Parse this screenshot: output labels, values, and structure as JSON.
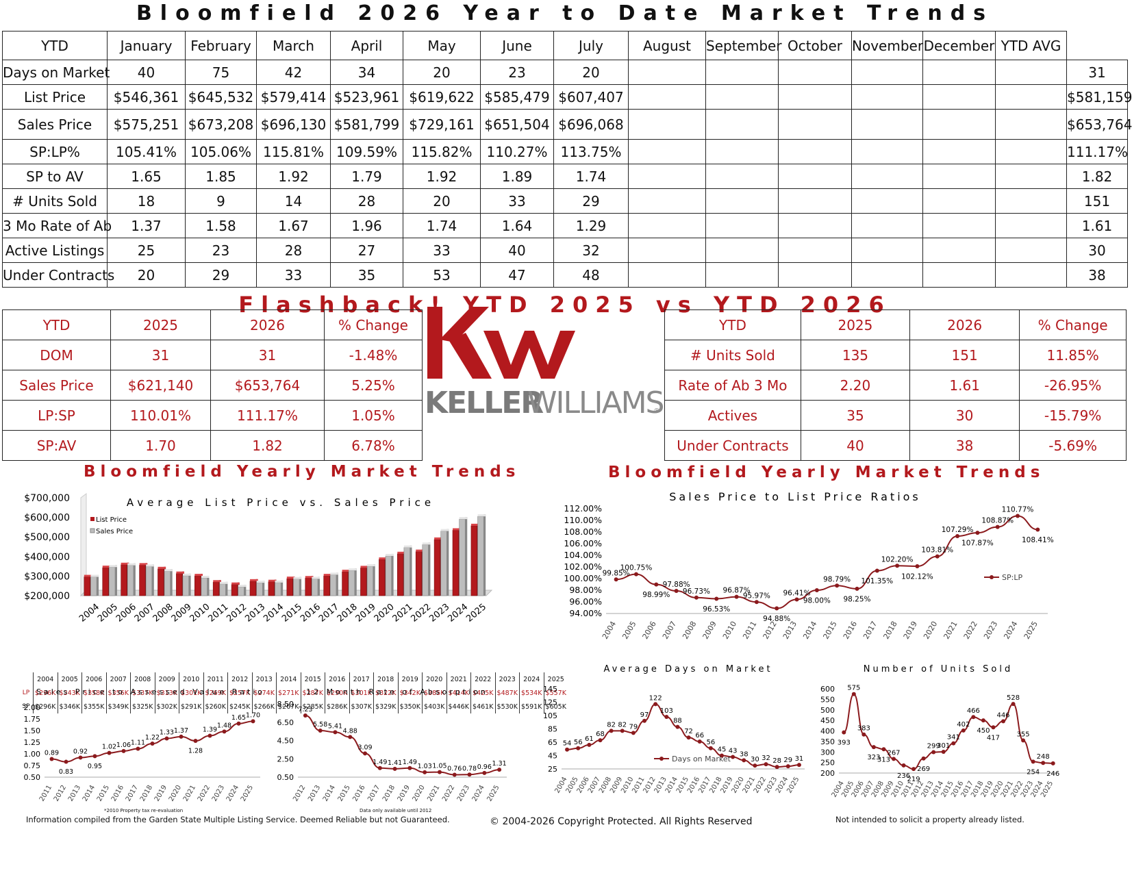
{
  "page_title": "Bloomfield 2026 Year to Date Market Trends",
  "main_table": {
    "headers": [
      "YTD",
      "January",
      "February",
      "March",
      "April",
      "May",
      "June",
      "July",
      "August",
      "September",
      "October",
      "November",
      "December",
      "YTD AVG"
    ],
    "rows": [
      {
        "label": "Days on Market",
        "values": [
          "40",
          "75",
          "42",
          "34",
          "20",
          "23",
          "20",
          "",
          "",
          "",
          "",
          "",
          ""
        ],
        "avg": "31"
      },
      {
        "label": "List Price",
        "values": [
          "$546,361",
          "$645,532",
          "$579,414",
          "$523,961",
          "$619,622",
          "$585,479",
          "$607,407",
          "",
          "",
          "",
          "",
          "",
          ""
        ],
        "avg": "$581,159"
      },
      {
        "label": "Sales Price",
        "values": [
          "$575,251",
          "$673,208",
          "$696,130",
          "$581,799",
          "$729,161",
          "$651,504",
          "$696,068",
          "",
          "",
          "",
          "",
          "",
          ""
        ],
        "avg": "$653,764"
      },
      {
        "label": "SP:LP%",
        "values": [
          "105.41%",
          "105.06%",
          "115.81%",
          "109.59%",
          "115.82%",
          "110.27%",
          "113.75%",
          "",
          "",
          "",
          "",
          "",
          ""
        ],
        "avg": "111.17%"
      },
      {
        "label": "SP to AV",
        "values": [
          "1.65",
          "1.85",
          "1.92",
          "1.79",
          "1.92",
          "1.89",
          "1.74",
          "",
          "",
          "",
          "",
          "",
          ""
        ],
        "avg": "1.82"
      },
      {
        "label": "# Units Sold",
        "values": [
          "18",
          "9",
          "14",
          "28",
          "20",
          "33",
          "29",
          "",
          "",
          "",
          "",
          "",
          ""
        ],
        "avg": "151"
      },
      {
        "label": "3 Mo Rate of Ab",
        "values": [
          "1.37",
          "1.58",
          "1.67",
          "1.96",
          "1.74",
          "1.64",
          "1.29",
          "",
          "",
          "",
          "",
          "",
          ""
        ],
        "avg": "1.61"
      },
      {
        "label": "Active Listings",
        "values": [
          "25",
          "23",
          "28",
          "27",
          "33",
          "40",
          "32",
          "",
          "",
          "",
          "",
          "",
          ""
        ],
        "avg": "30"
      },
      {
        "label": "Under Contracts",
        "values": [
          "20",
          "29",
          "33",
          "35",
          "53",
          "47",
          "48",
          "",
          "",
          "",
          "",
          "",
          ""
        ],
        "avg": "38"
      }
    ]
  },
  "flashback_title": "Flashback!  YTD 2025 vs YTD 2026",
  "left_compare": {
    "headers": [
      "YTD",
      "2025",
      "2026",
      "% Change"
    ],
    "rows": [
      [
        "DOM",
        "31",
        "31",
        "-1.48%"
      ],
      [
        "Sales Price",
        "$621,140",
        "$653,764",
        "5.25%"
      ],
      [
        "LP:SP",
        "110.01%",
        "111.17%",
        "1.05%"
      ],
      [
        "SP:AV",
        "1.70",
        "1.82",
        "6.78%"
      ]
    ]
  },
  "right_compare": {
    "headers": [
      "YTD",
      "2025",
      "2026",
      "% Change"
    ],
    "rows": [
      [
        "# Units Sold",
        "135",
        "151",
        "11.85%"
      ],
      [
        "Rate of Ab 3 Mo",
        "2.20",
        "1.61",
        "-26.95%"
      ],
      [
        "Actives",
        "35",
        "30",
        "-15.79%"
      ],
      [
        "Under Contracts",
        "40",
        "38",
        "-5.69%"
      ]
    ]
  },
  "logo": {
    "mark": "KW",
    "wordmark_bold": "KELLER",
    "wordmark_light": "WILLIAMS",
    "reg": "®"
  },
  "section_titles": {
    "left": "Bloomfield Yearly Market Trends",
    "right": "Bloomfield Yearly Market Trends"
  },
  "colors": {
    "brand_red": "#b3191d",
    "gray_bar": "#bdbdbd"
  },
  "chart_data": [
    {
      "type": "bar",
      "title": "Average List Price vs. Sales Price",
      "categories": [
        "2004",
        "2005",
        "2006",
        "2007",
        "2008",
        "2009",
        "2010",
        "2011",
        "2012",
        "2013",
        "2014",
        "2015",
        "2016",
        "2017",
        "2018",
        "2019",
        "2020",
        "2021",
        "2022",
        "2023",
        "2024",
        "2025"
      ],
      "series": [
        {
          "name": "List Price",
          "values": [
            296000,
            343000,
            358000,
            356000,
            337000,
            313000,
            301000,
            269000,
            257000,
            274000,
            271000,
            287000,
            290000,
            301000,
            322000,
            342000,
            385000,
            414000,
            425000,
            487000,
            534000,
            557000
          ]
        },
        {
          "name": "Sales Price",
          "values": [
            296000,
            346000,
            355000,
            349000,
            325000,
            302000,
            291000,
            260000,
            245000,
            266000,
            267000,
            285000,
            286000,
            307000,
            329000,
            350000,
            403000,
            446000,
            461000,
            530000,
            591000,
            605000
          ]
        }
      ],
      "yticks": [
        "$200,000",
        "$300,000",
        "$400,000",
        "$500,000",
        "$600,000",
        "$700,000"
      ],
      "ylim": [
        200000,
        700000
      ],
      "legend": "top-left",
      "table": {
        "years": [
          "2004",
          "2005",
          "2006",
          "2007",
          "2008",
          "2009",
          "2010",
          "2011",
          "2012",
          "2013",
          "2014",
          "2015",
          "2016",
          "2017",
          "2018",
          "2019",
          "2020",
          "2021",
          "2022",
          "2023",
          "2024",
          "2025"
        ],
        "lp_label": "LP",
        "sp_label": "SP",
        "lp": [
          "$296K",
          "$343K",
          "$358K",
          "$356K",
          "$337K",
          "$313K",
          "$301K",
          "$269K",
          "$257K",
          "$274K",
          "$271K",
          "$287K",
          "$290K",
          "$301K",
          "$322K",
          "$342K",
          "$385K",
          "$414K",
          "$425K",
          "$487K",
          "$534K",
          "$557K"
        ],
        "sp": [
          "$296K",
          "$346K",
          "$355K",
          "$349K",
          "$325K",
          "$302K",
          "$291K",
          "$260K",
          "$245K",
          "$266K",
          "$267K",
          "$285K",
          "$286K",
          "$307K",
          "$329K",
          "$350K",
          "$403K",
          "$446K",
          "$461K",
          "$530K",
          "$591K",
          "$605K"
        ]
      }
    },
    {
      "type": "line",
      "title": "Sales Price to List Price Ratios",
      "categories": [
        "2004",
        "2005",
        "2006",
        "2007",
        "2008",
        "2009",
        "2010",
        "2011",
        "2012",
        "2013",
        "2014",
        "2015",
        "2016",
        "2017",
        "2018",
        "2019",
        "2020",
        "2021",
        "2022",
        "2023",
        "2024",
        "2025"
      ],
      "series": [
        {
          "name": "SP:LP",
          "values": [
            99.85,
            100.75,
            98.99,
            97.88,
            96.73,
            96.53,
            96.87,
            95.97,
            94.88,
            96.41,
            98.0,
            98.79,
            98.25,
            101.35,
            102.2,
            102.12,
            103.81,
            107.29,
            107.87,
            108.87,
            110.77,
            108.41
          ]
        }
      ],
      "labels": [
        "99.85%",
        "100.75%",
        "98.99%",
        "97.88%",
        "96.73%",
        "96.53%",
        "96.87%",
        "95.97%",
        "94.88%",
        "96.41%",
        "98.00%",
        "98.79%",
        "98.25%",
        "101.35%",
        "102.20%",
        "102.12%",
        "103.81%",
        "107.29%",
        "107.87%",
        "108.87%",
        "110.77%",
        "108.41%"
      ],
      "yticks": [
        "94.00%",
        "96.00%",
        "98.00%",
        "100.00%",
        "102.00%",
        "104.00%",
        "106.00%",
        "108.00%",
        "110.00%",
        "112.00%"
      ],
      "ylim": [
        94,
        112
      ],
      "legend": "right"
    },
    {
      "type": "line",
      "title": "Sales Price to Assessed Value Ratio",
      "categories": [
        "2011",
        "2012",
        "2013",
        "2014",
        "2015",
        "2016",
        "2017",
        "2018",
        "2019",
        "2020",
        "2021",
        "2022",
        "2023",
        "2024",
        "2025"
      ],
      "series": [
        {
          "values": [
            0.89,
            0.83,
            0.92,
            0.95,
            1.02,
            1.06,
            1.11,
            1.22,
            1.33,
            1.37,
            1.28,
            1.39,
            1.48,
            1.65,
            1.7
          ]
        }
      ],
      "labels": [
        "0.89",
        "0.83",
        "0.92",
        "0.95",
        "1.02",
        "1.06",
        "1.11",
        "1.22",
        "1.33",
        "1.37",
        "1.28",
        "1.39",
        "1.48",
        "1.65",
        "1.70"
      ],
      "yticks": [
        "0.50",
        "0.75",
        "1.00",
        "1.25",
        "1.50",
        "1.75",
        "2.00"
      ],
      "ylim": [
        0.5,
        2.0
      ],
      "note": "*2010 Property tax re-evaluation"
    },
    {
      "type": "line",
      "title": "12 Month Rate of Absorption",
      "categories": [
        "2012",
        "2013",
        "2014",
        "2015",
        "2016",
        "2017",
        "2018",
        "2019",
        "2020",
        "2021",
        "2022",
        "2023",
        "2024",
        "2025"
      ],
      "series": [
        {
          "values": [
            7.23,
            5.58,
            5.41,
            4.88,
            3.09,
            1.49,
            1.41,
            1.49,
            1.03,
            1.05,
            0.76,
            0.78,
            0.96,
            1.31
          ]
        }
      ],
      "labels": [
        "7.23",
        "5.58",
        "5.41",
        "4.88",
        "3.09",
        "1.49",
        "1.41",
        "1.49",
        "1.03",
        "1.05",
        "0.76",
        "0.78",
        "0.96",
        "1.31"
      ],
      "yticks": [
        "0.50",
        "2.50",
        "4.50",
        "6.50",
        "8.50"
      ],
      "ylim": [
        0.5,
        8.5
      ],
      "note": "Data only available until 2012"
    },
    {
      "type": "line",
      "title": "Average Days on Market",
      "categories": [
        "2004",
        "2005",
        "2006",
        "2007",
        "2008",
        "2009",
        "2010",
        "2011",
        "2012",
        "2013",
        "2014",
        "2015",
        "2016",
        "2017",
        "2018",
        "2019",
        "2020",
        "2021",
        "2022",
        "2023",
        "2024",
        "2025"
      ],
      "series": [
        {
          "name": "Days on Market",
          "values": [
            54,
            56,
            61,
            68,
            82,
            82,
            79,
            97,
            122,
            103,
            88,
            72,
            66,
            56,
            45,
            43,
            38,
            30,
            32,
            28,
            29,
            31
          ]
        }
      ],
      "labels": [
        "54",
        "56",
        "61",
        "68",
        "82",
        "82",
        "79",
        "97",
        "122",
        "103",
        "88",
        "72",
        "66",
        "56",
        "45",
        "43",
        "38",
        "30",
        "32",
        "28",
        "29",
        "31"
      ],
      "yticks": [
        "25",
        "45",
        "65",
        "85",
        "105",
        "125",
        "145"
      ],
      "ylim": [
        25,
        145
      ],
      "legend": "bottom-center"
    },
    {
      "type": "line",
      "title": "Number of Units Sold",
      "categories": [
        "2004",
        "2005",
        "2006",
        "2007",
        "2008",
        "2009",
        "2010",
        "2011",
        "2012",
        "2013",
        "2014",
        "2015",
        "2016",
        "2017",
        "2018",
        "2019",
        "2020",
        "2021",
        "2022",
        "2023",
        "2024",
        "2025"
      ],
      "series": [
        {
          "values": [
            393,
            575,
            383,
            323,
            313,
            267,
            236,
            219,
            269,
            299,
            301,
            341,
            402,
            466,
            450,
            417,
            446,
            528,
            355,
            254,
            248,
            246
          ]
        }
      ],
      "labels": [
        "393",
        "575",
        "383",
        "323",
        "313",
        "267",
        "236",
        "219",
        "269",
        "299",
        "301",
        "341",
        "402",
        "466",
        "450",
        "417",
        "446",
        "528",
        "355",
        "254",
        "248",
        "246"
      ],
      "yticks": [
        "200",
        "250",
        "300",
        "350",
        "400",
        "450",
        "500",
        "550",
        "600"
      ],
      "ylim": [
        200,
        600
      ]
    }
  ],
  "footer": {
    "left": "Information compiled from the Garden State Multiple Listing Service.  Deemed Reliable but not Guaranteed.",
    "center": "© 2004-2026 Copyright Protected.  All Rights Reserved",
    "right": "Not intended to solicit a property already listed."
  }
}
